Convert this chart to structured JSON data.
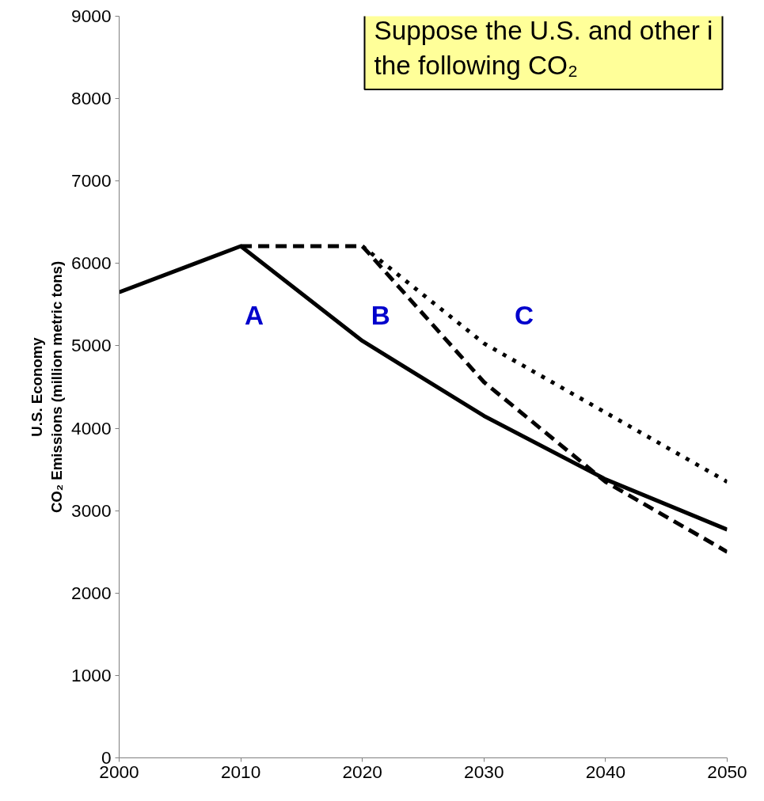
{
  "chart_data": {
    "type": "line",
    "ylabel": "U.S. Economy\nCO₂ Emissions (million metric tons)",
    "xlim": [
      2000,
      2050
    ],
    "xticks": [
      2000,
      2010,
      2020,
      2030,
      2040,
      2050
    ],
    "ylim": [
      0,
      9000
    ],
    "yticks": [
      0,
      1000,
      2000,
      3000,
      4000,
      5000,
      6000,
      7000,
      8000,
      9000
    ],
    "grid": false,
    "marker": "none",
    "series": [
      {
        "name": "A",
        "color": "#000000",
        "line_style": "solid",
        "x": [
          2000,
          2010,
          2020,
          2030,
          2040,
          2050
        ],
        "values": [
          5650,
          6210,
          5060,
          4150,
          3380,
          2770
        ]
      },
      {
        "name": "B",
        "color": "#000000",
        "line_style": "dashed",
        "x": [
          2010,
          2020,
          2030,
          2040,
          2050
        ],
        "values": [
          6210,
          6210,
          4560,
          3350,
          2500
        ]
      },
      {
        "name": "C",
        "color": "#000000",
        "line_style": "dotted",
        "x": [
          2020,
          2030,
          2040,
          2050
        ],
        "values": [
          6210,
          5030,
          4190,
          3350
        ]
      }
    ],
    "annotations": [
      "Suppose the U.S. and other i\nthe following CO₂"
    ]
  }
}
